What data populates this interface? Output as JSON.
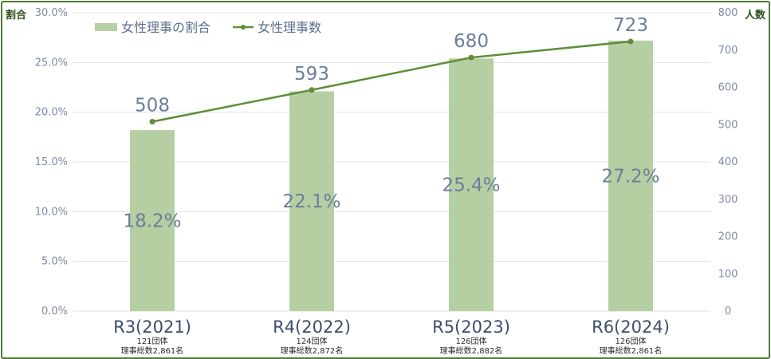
{
  "chart_data": {
    "type": "bar+line",
    "title": "",
    "y_left_label": "割合",
    "y_right_label": "人数",
    "y_left_ticks": [
      "0.0%",
      "5.0%",
      "10.0%",
      "15.0%",
      "20.0%",
      "25.0%",
      "30.0%"
    ],
    "y_right_ticks": [
      "0",
      "100",
      "200",
      "300",
      "400",
      "500",
      "600",
      "700",
      "800"
    ],
    "ylim_left": [
      0,
      30
    ],
    "ylim_right": [
      0,
      800
    ],
    "grid": true,
    "legend_position": "top-left",
    "categories": [
      {
        "label": "R3(2021)",
        "sub1": "121団体",
        "sub2": "理事総数2,861名"
      },
      {
        "label": "R4(2022)",
        "sub1": "124団体",
        "sub2": "理事総数2,872名"
      },
      {
        "label": "R5(2023)",
        "sub1": "126団体",
        "sub2": "理事総数2,882名"
      },
      {
        "label": "R6(2024)",
        "sub1": "126団体",
        "sub2": "理事総数2,861名"
      }
    ],
    "series": [
      {
        "name": "女性理事の割合",
        "kind": "bar",
        "axis": "left",
        "values": [
          18.2,
          22.1,
          25.4,
          27.2
        ],
        "labels": [
          "18.2%",
          "22.1%",
          "25.4%",
          "27.2%"
        ],
        "color": "#b5cfa2"
      },
      {
        "name": "女性理事数",
        "kind": "line",
        "axis": "right",
        "values": [
          508,
          593,
          680,
          723
        ],
        "labels": [
          "508",
          "593",
          "680",
          "723"
        ],
        "color": "#5d8f3a"
      }
    ]
  },
  "colors": {
    "frame": "#4f7a33",
    "grid": "#dde3ea",
    "tick_text": "#7f8aa3"
  }
}
